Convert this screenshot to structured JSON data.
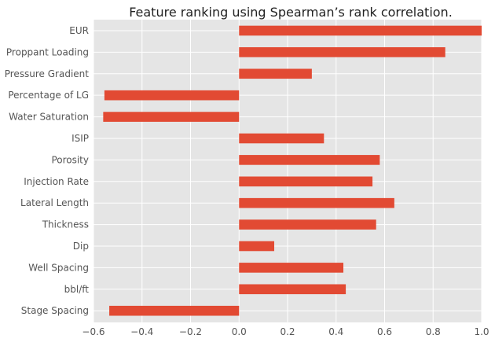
{
  "chart_data": {
    "type": "bar",
    "orientation": "horizontal",
    "title": "Feature ranking using Spearman’s rank correlation.",
    "xlabel": "",
    "ylabel": "",
    "xlim": [
      -0.6,
      1.0
    ],
    "xticks": [
      "−0.6",
      "−0.4",
      "−0.2",
      "0.0",
      "0.2",
      "0.4",
      "0.6",
      "0.8",
      "1.0"
    ],
    "grid": true,
    "bar_color": "#E24A33",
    "background_color": "#E5E5E5",
    "categories": [
      "EUR",
      "Proppant Loading",
      "Pressure Gradient",
      "Percentage of LG",
      "Water Saturation",
      "ISIP",
      "Porosity",
      "Injection Rate",
      "Lateral Length",
      "Thickness",
      "Dip",
      "Well Spacing",
      "bbl/ft",
      "Stage Spacing"
    ],
    "values": [
      1.0,
      0.85,
      0.3,
      -0.555,
      -0.56,
      0.35,
      0.58,
      0.55,
      0.64,
      0.565,
      0.145,
      0.43,
      0.44,
      -0.535
    ]
  }
}
